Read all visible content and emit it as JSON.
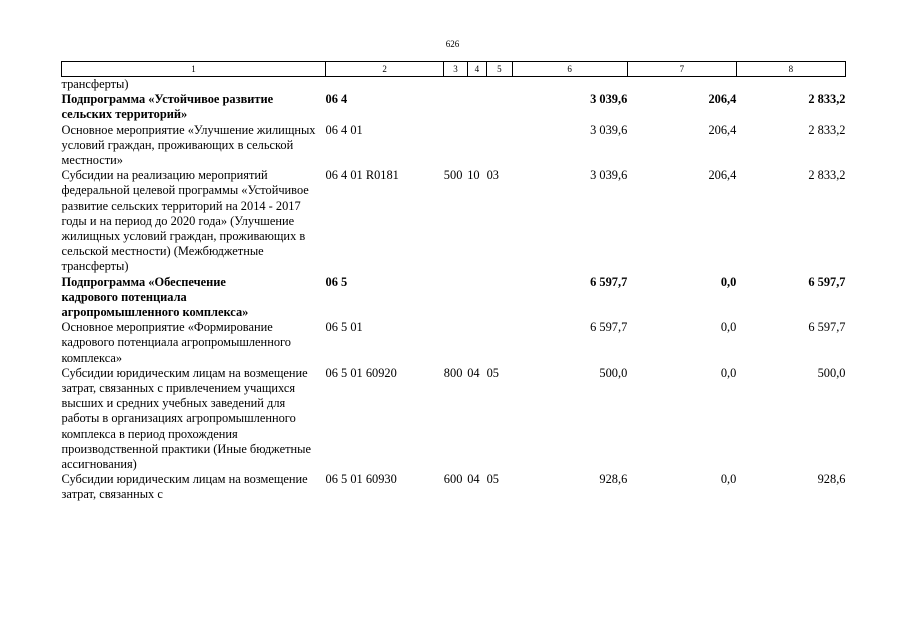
{
  "page_number": "626",
  "header_columns": [
    "1",
    "2",
    "3",
    "4",
    "5",
    "6",
    "7",
    "8"
  ],
  "rows": [
    {
      "name": "трансферты)",
      "code": "",
      "vr": "",
      "rz": "",
      "pr": "",
      "sum1": "",
      "sum2": "",
      "sum3": ""
    },
    {
      "name": "Подпрограмма «Устойчивое развитие сельских территорий»",
      "code": "06 4",
      "vr": "",
      "rz": "",
      "pr": "",
      "sum1": "3 039,6",
      "sum2": "206,4",
      "sum3": "2 833,2"
    },
    {
      "name": "Основное мероприятие «Улучшение жилищных условий граждан, проживающих в сельской местности»",
      "code": "06 4 01",
      "vr": "",
      "rz": "",
      "pr": "",
      "sum1": "3 039,6",
      "sum2": "206,4",
      "sum3": "2 833,2"
    },
    {
      "name": "Субсидии на реализацию мероприятий федеральной целевой программы «Устойчивое развитие сельских территорий на 2014 - 2017 годы и на период до 2020 года» (Улучшение жилищных условий граждан, проживающих в сельской местности) (Межбюджетные трансферты)",
      "code": "06 4 01 R0181",
      "vr": "500",
      "rz": "10",
      "pr": "03",
      "sum1": "3 039,6",
      "sum2": "206,4",
      "sum3": "2 833,2"
    },
    {
      "name": "Подпрограмма «Обеспечение кадрового потенциала агропромышленного комплекса»",
      "code": "06 5",
      "vr": "",
      "rz": "",
      "pr": "",
      "sum1": "6 597,7",
      "sum2": "0,0",
      "sum3": "6 597,7"
    },
    {
      "name": "Основное мероприятие «Формирование кадрового потенциала агропромышленного комплекса»",
      "code": "06 5 01",
      "vr": "",
      "rz": "",
      "pr": "",
      "sum1": "6 597,7",
      "sum2": "0,0",
      "sum3": "6 597,7"
    },
    {
      "name": "Субсидии юридическим лицам на возмещение затрат, связанных с привлечением учащихся высших и средних учебных заведений для работы в организациях агропромышленного комплекса в период прохождения производственной практики (Иные бюджетные ассигнования)",
      "code": "06 5 01 60920",
      "vr": "800",
      "rz": "04",
      "pr": "05",
      "sum1": "500,0",
      "sum2": "0,0",
      "sum3": "500,0"
    },
    {
      "name": "Субсидии юридическим лицам на возмещение затрат, связанных с",
      "code": "06 5 01 60930",
      "vr": "600",
      "rz": "04",
      "pr": "05",
      "sum1": "928,6",
      "sum2": "0,0",
      "sum3": "928,6"
    }
  ]
}
